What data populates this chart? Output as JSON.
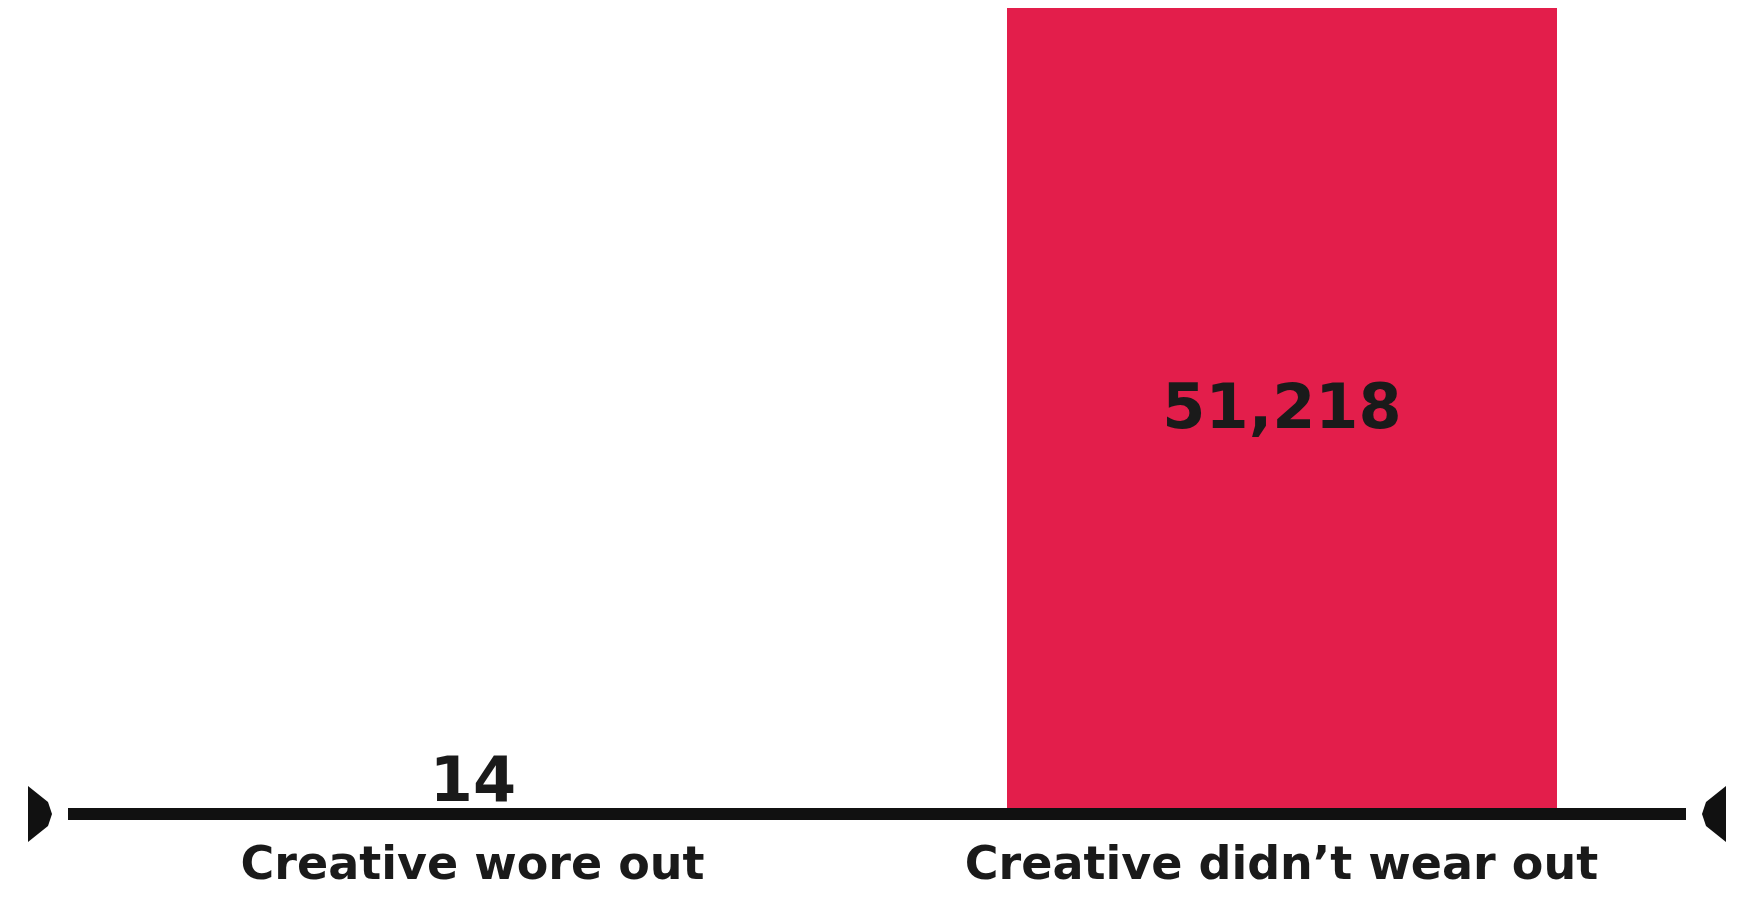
{
  "chart_data": {
    "type": "bar",
    "categories": [
      "Creative wore out",
      "Creative didn’t wear out"
    ],
    "values": [
      14,
      51218
    ],
    "value_labels": [
      "14",
      "51,218"
    ],
    "color": "#e31e4b",
    "grid": false,
    "legend": false
  }
}
